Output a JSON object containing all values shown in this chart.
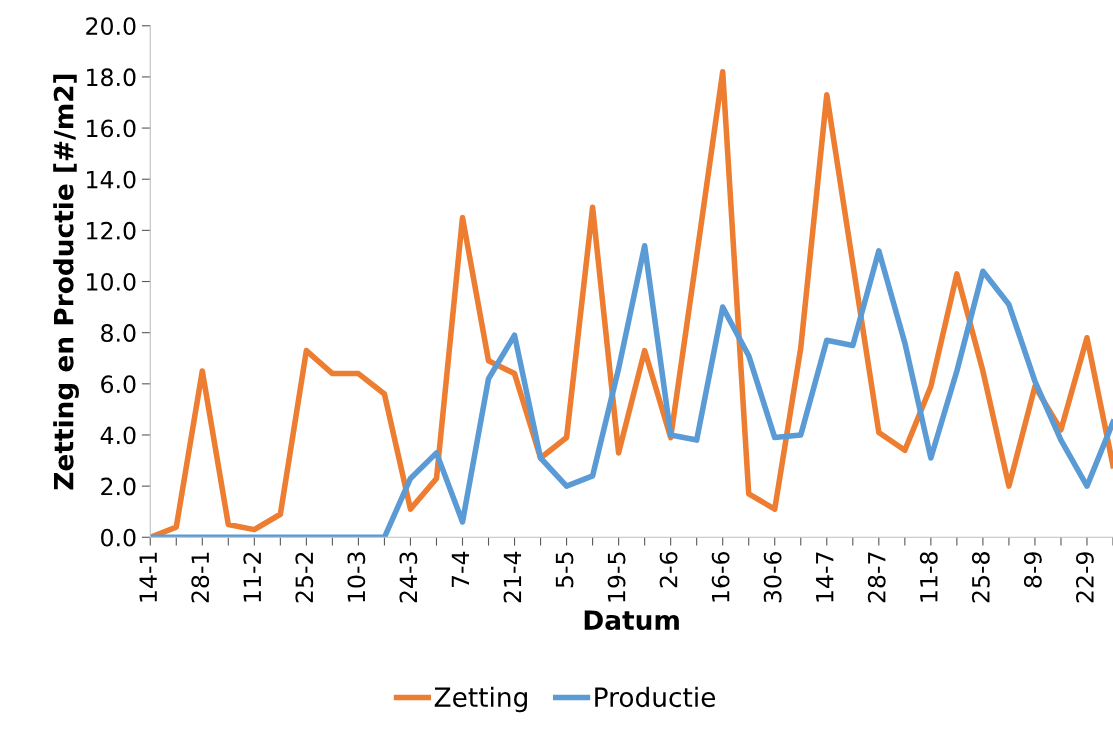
{
  "chart_data": {
    "type": "line",
    "xlabel": "Datum",
    "ylabel": "Zetting en Productie [#/m2]",
    "categories": [
      "14-1",
      null,
      "28-1",
      null,
      "11-2",
      null,
      "25-2",
      null,
      "10-3",
      null,
      "24-3",
      null,
      "7-4",
      null,
      "21-4",
      null,
      "5-5",
      null,
      "19-5",
      null,
      "2-6",
      null,
      "16-6",
      null,
      "30-6",
      null,
      "14-7",
      null,
      "28-7",
      null,
      "11-8",
      null,
      "25-8",
      null,
      "8-9",
      null,
      "22-9",
      null
    ],
    "series": [
      {
        "name": "Zetting",
        "color": "#ed7d31",
        "values": [
          0,
          0.4,
          6.5,
          0.5,
          0.3,
          0.9,
          7.3,
          6.4,
          6.4,
          5.6,
          1.1,
          2.3,
          12.5,
          6.9,
          6.4,
          3.1,
          3.9,
          12.9,
          3.3,
          7.3,
          3.9,
          11.0,
          18.2,
          1.7,
          1.1,
          7.4,
          17.3,
          10.7,
          4.1,
          3.4,
          5.9,
          10.3,
          6.5,
          2.0,
          5.9,
          4.2,
          7.8,
          2.8
        ]
      },
      {
        "name": "Productie",
        "color": "#5b9bd5",
        "values": [
          0,
          0,
          0,
          0,
          0,
          0,
          0,
          0,
          0,
          0,
          2.3,
          3.3,
          0.6,
          6.2,
          7.9,
          3.1,
          2.0,
          2.4,
          6.6,
          11.4,
          4.0,
          3.8,
          9.0,
          7.1,
          3.9,
          4.0,
          7.7,
          7.5,
          11.2,
          7.6,
          3.1,
          6.5,
          10.4,
          9.1,
          6.1,
          3.8,
          2.0,
          4.5
        ]
      }
    ],
    "ylim": [
      0,
      20
    ],
    "yticks": [
      {
        "value": 0,
        "label": "0.0"
      },
      {
        "value": 2,
        "label": "2.0"
      },
      {
        "value": 4,
        "label": "4.0"
      },
      {
        "value": 6,
        "label": "6.0"
      },
      {
        "value": 8,
        "label": "8.0"
      },
      {
        "value": 10,
        "label": "10.0"
      },
      {
        "value": 12,
        "label": "12.0"
      },
      {
        "value": 14,
        "label": "14.0"
      },
      {
        "value": 16,
        "label": "16.0"
      },
      {
        "value": 18,
        "label": "18.0"
      },
      {
        "value": 20,
        "label": "20.0"
      }
    ],
    "grid": false,
    "legend": "bottom",
    "marker": "none",
    "line_style": "solid"
  }
}
